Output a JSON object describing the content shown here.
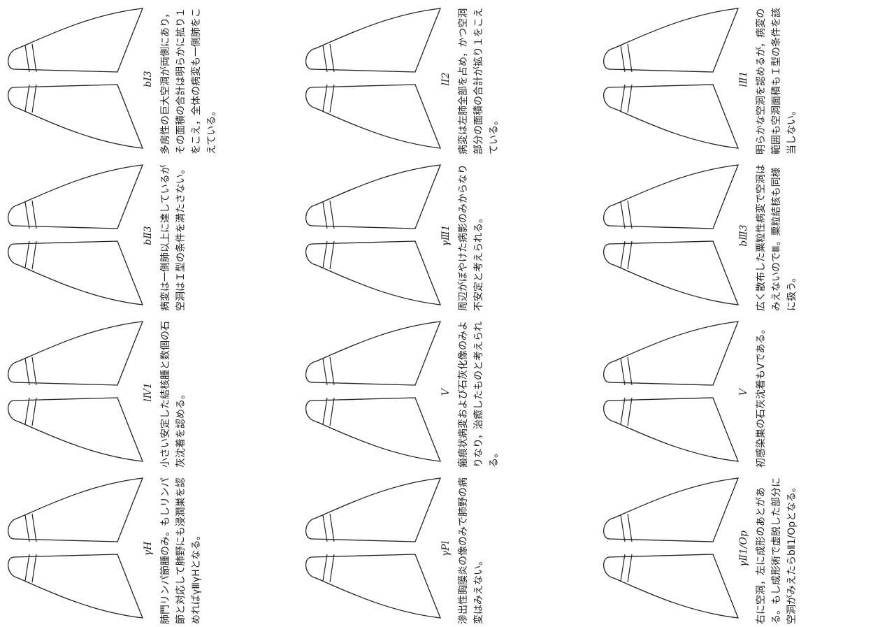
{
  "panels": [
    {
      "label": "bⅠ3",
      "caption": "多房性の巨大空洞が両側にあり，その面積の合計は明らかに拡り１をこえ，全体の病変も一側肺をこえている。"
    },
    {
      "label": "bⅡ3",
      "caption": "病変は一側肺以上に達しているが空洞はＩ型の条件を満たさない。"
    },
    {
      "label": "lⅣ1",
      "caption": "小さい安定した結核腫と数個の石灰沈着を認める。"
    },
    {
      "label": "γH",
      "caption": "肺門リンパ節腫のみ。もしリンパ節と対応して肺野にも浸潤巣を認めればγⅢγHとなる。"
    },
    {
      "label": "lⅠ2",
      "caption": "病変は左肺全部を占め，かつ空洞部分の面積の合計が拡り１をこえている。"
    },
    {
      "label": "γⅢ1",
      "caption": "周辺がぼやけた病影のみからなり不安定と考えられる。"
    },
    {
      "label": "Ⅴ",
      "caption": "瘢痕状病変および石灰化像のみよりなり，治癒したものと考えられる。"
    },
    {
      "label": "γPl",
      "caption": "滲出性胸膜炎の像のみで肺野の病変はみえない。"
    },
    {
      "label": "lⅡ1",
      "caption": "明らかな空洞を認めるが，病変の範囲も空洞面積もＩ型の条件を該当しない。"
    },
    {
      "label": "bⅢ3",
      "caption": "広く散布した粟粒性病変で空洞はみえないのでⅢ。粟粒結核も同様に扱う。"
    },
    {
      "label": "Ⅴ",
      "caption": "初感染巣の石灰沈着もⅤである。"
    },
    {
      "label": "γⅡ1/Op",
      "caption": "右に空洞，左に成形のあとがある。もし成形術で虚脱した部分に空洞がみえたらbⅡ1/Opとなる。"
    }
  ]
}
